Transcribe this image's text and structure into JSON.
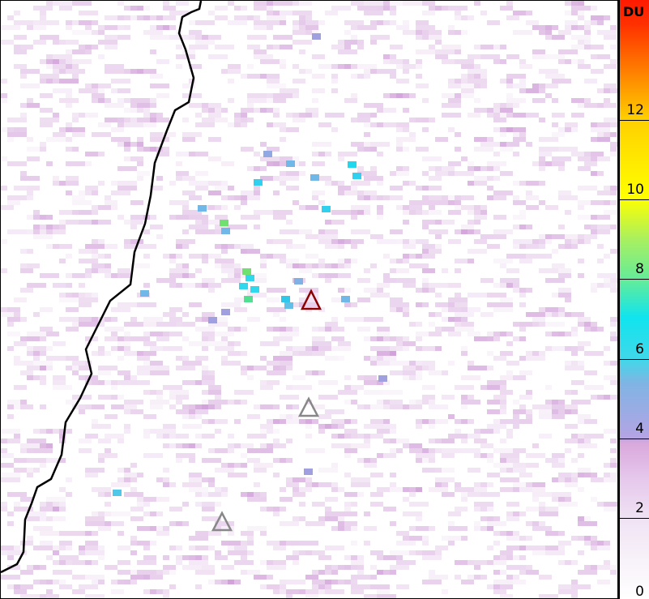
{
  "colorbar": {
    "unit": "DU",
    "ticks": [
      "0",
      "2",
      "4",
      "6",
      "8",
      "10",
      "12"
    ],
    "range": [
      0,
      14
    ],
    "colors": [
      "#ffffff",
      "#e6c8ec",
      "#80b4e4",
      "#10e4ee",
      "#a8f060",
      "#ffff00",
      "#ff1a00"
    ]
  },
  "markers": [
    {
      "name": "active-volcano",
      "color": "#8b0000"
    },
    {
      "name": "volcano",
      "color": "#888888"
    },
    {
      "name": "volcano",
      "color": "#888888"
    }
  ],
  "coastline_color": "#000000"
}
